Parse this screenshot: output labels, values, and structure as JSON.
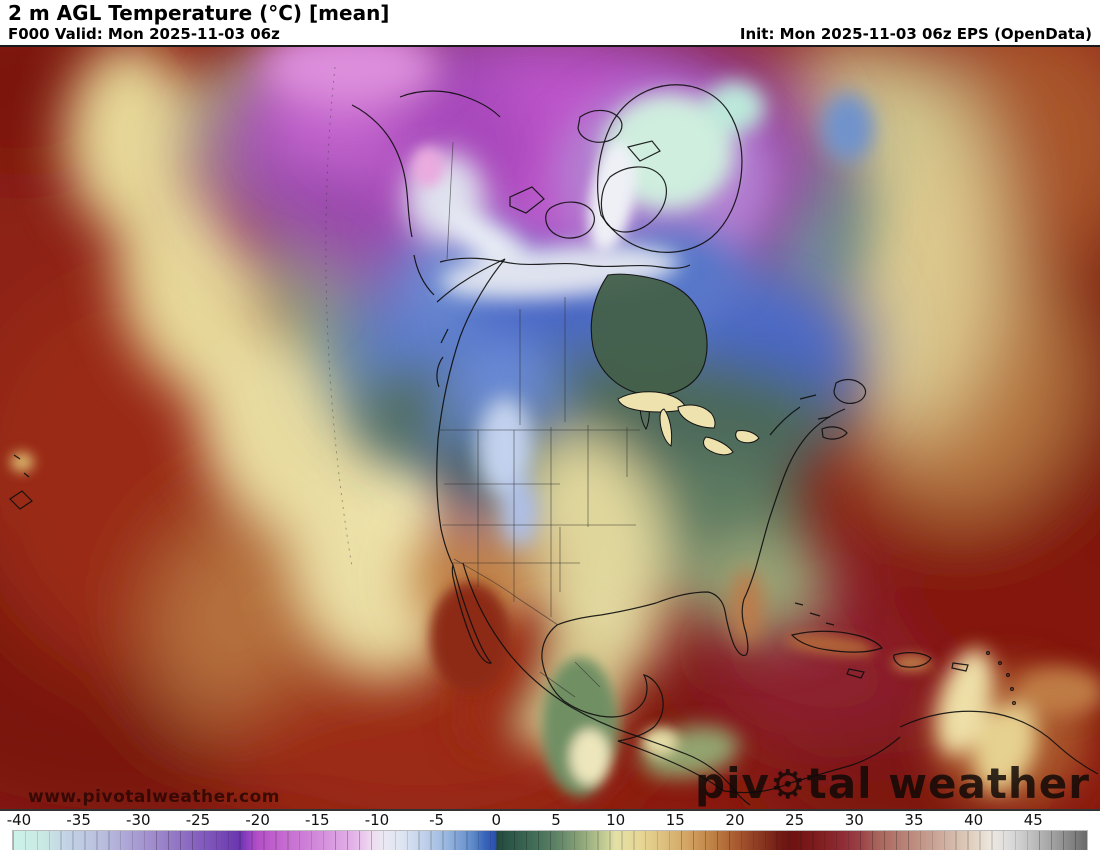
{
  "header": {
    "title": "2 m AGL Temperature (°C) [mean]",
    "valid": "F000 Valid: Mon 2025-11-03 06z",
    "init": "Init: Mon 2025-11-03 06z EPS (OpenData)"
  },
  "watermark": {
    "url": "www.pivotalweather.com",
    "logo_pre": "piv",
    "logo_gear": "⚙",
    "logo_post": "tal weather"
  },
  "colorbar": {
    "units": "°C",
    "min": -40.5,
    "max": 49.5,
    "ticks": [
      -40,
      -35,
      -30,
      -25,
      -20,
      -15,
      -10,
      -5,
      0,
      5,
      10,
      15,
      20,
      25,
      30,
      35,
      40,
      45
    ],
    "stops": [
      {
        "v": -40.5,
        "c": "#cbf2e9"
      },
      {
        "v": -38,
        "c": "#c9e9e3"
      },
      {
        "v": -36,
        "c": "#c3d3e6"
      },
      {
        "v": -33,
        "c": "#b9bede"
      },
      {
        "v": -30,
        "c": "#a79ad2"
      },
      {
        "v": -27,
        "c": "#9478c6"
      },
      {
        "v": -24,
        "c": "#7e55bb"
      },
      {
        "v": -21.5,
        "c": "#6a35ae"
      },
      {
        "v": -20.8,
        "c": "#9340c2"
      },
      {
        "v": -20,
        "c": "#b44fc6"
      },
      {
        "v": -18,
        "c": "#c468d0"
      },
      {
        "v": -15,
        "c": "#d28ada"
      },
      {
        "v": -12,
        "c": "#e3b2e8"
      },
      {
        "v": -10.5,
        "c": "#efd9f0"
      },
      {
        "v": -9.5,
        "c": "#ebe8f3"
      },
      {
        "v": -8,
        "c": "#dfe6f2"
      },
      {
        "v": -6,
        "c": "#bfd0ea"
      },
      {
        "v": -4,
        "c": "#95b4de"
      },
      {
        "v": -2,
        "c": "#5f8aca"
      },
      {
        "v": -1,
        "c": "#3a66ba"
      },
      {
        "v": -0.05,
        "c": "#2b4fae"
      },
      {
        "v": 0.05,
        "c": "#24493c"
      },
      {
        "v": 1,
        "c": "#2b5546"
      },
      {
        "v": 3,
        "c": "#3f6b56"
      },
      {
        "v": 5,
        "c": "#5d8266"
      },
      {
        "v": 7,
        "c": "#8aa377"
      },
      {
        "v": 9,
        "c": "#c0cb93"
      },
      {
        "v": 10,
        "c": "#e3e0a5"
      },
      {
        "v": 12,
        "c": "#e7d795"
      },
      {
        "v": 14,
        "c": "#ddc07f"
      },
      {
        "v": 16,
        "c": "#d3a464"
      },
      {
        "v": 18,
        "c": "#c08347"
      },
      {
        "v": 20,
        "c": "#a95c31"
      },
      {
        "v": 22,
        "c": "#8c3a22"
      },
      {
        "v": 24,
        "c": "#6f1812"
      },
      {
        "v": 25,
        "c": "#701313"
      },
      {
        "v": 27,
        "c": "#7f1d1f"
      },
      {
        "v": 29,
        "c": "#8f2c35"
      },
      {
        "v": 30.5,
        "c": "#9b4247"
      },
      {
        "v": 32,
        "c": "#a9655c"
      },
      {
        "v": 34,
        "c": "#b67f74"
      },
      {
        "v": 36,
        "c": "#c49a8c"
      },
      {
        "v": 38,
        "c": "#d2b5a6"
      },
      {
        "v": 40,
        "c": "#e2d2c2"
      },
      {
        "v": 41.5,
        "c": "#ede8e0"
      },
      {
        "v": 43,
        "c": "#dcdcdc"
      },
      {
        "v": 45,
        "c": "#bdbdbd"
      },
      {
        "v": 47,
        "c": "#9b9b9b"
      },
      {
        "v": 49.5,
        "c": "#6a6a6a"
      }
    ]
  }
}
